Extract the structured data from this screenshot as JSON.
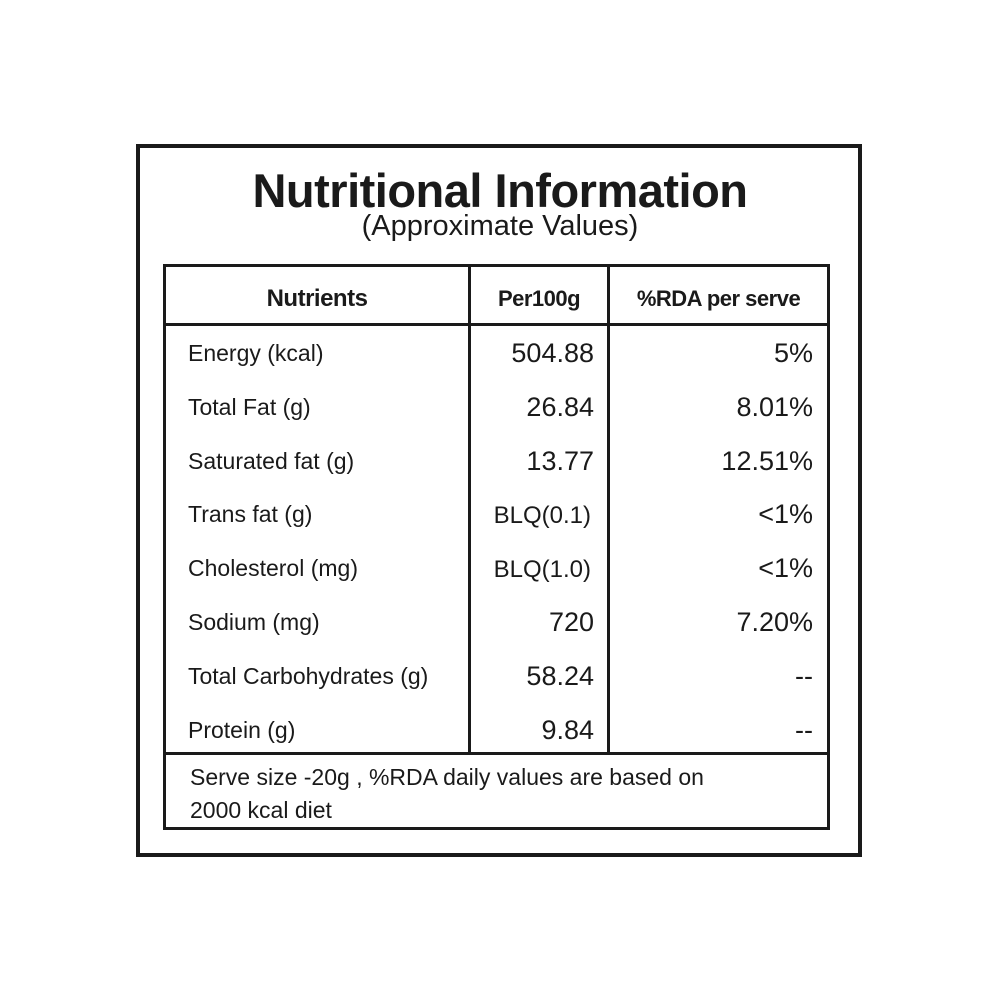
{
  "title": "Nutritional Information",
  "subtitle": "(Approximate Values)",
  "table": {
    "headers": [
      "Nutrients",
      "Per100g",
      "%RDA per serve"
    ],
    "rows": [
      {
        "nutrient": "Energy (kcal)",
        "per100g": "504.88",
        "rda": "5%"
      },
      {
        "nutrient": "Total Fat (g)",
        "per100g": "26.84",
        "rda": "8.01%"
      },
      {
        "nutrient": "Saturated fat (g)",
        "per100g": "13.77",
        "rda": "12.51%"
      },
      {
        "nutrient": "Trans fat (g)",
        "per100g": "BLQ(0.1)",
        "rda": "<1%"
      },
      {
        "nutrient": "Cholesterol (mg)",
        "per100g": "BLQ(1.0)",
        "rda": "<1%"
      },
      {
        "nutrient": "Sodium (mg)",
        "per100g": "720",
        "rda": "7.20%"
      },
      {
        "nutrient": "Total Carbohydrates (g)",
        "per100g": "58.24",
        "rda": "--"
      },
      {
        "nutrient": "Protein (g)",
        "per100g": "9.84",
        "rda": "--"
      }
    ],
    "footnote_line1": "Serve size -20g , %RDA daily values are based on",
    "footnote_line2": "2000 kcal diet"
  }
}
